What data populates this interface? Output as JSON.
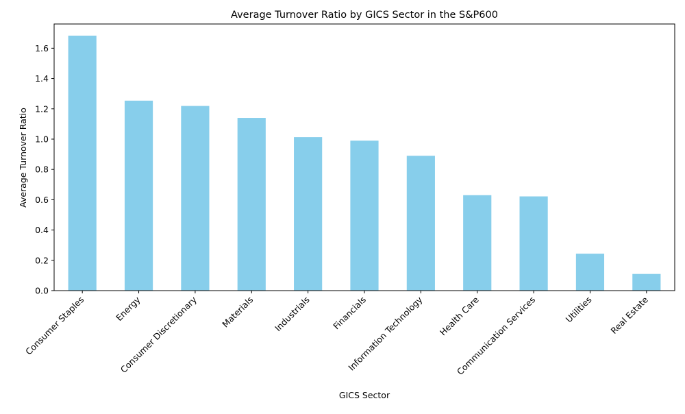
{
  "chart_data": {
    "type": "bar",
    "title": "Average Turnover Ratio by GICS Sector in the S&P600",
    "xlabel": "GICS Sector",
    "ylabel": "Average Turnover Ratio",
    "categories": [
      "Consumer Staples",
      "Energy",
      "Consumer Discretionary",
      "Materials",
      "Industrials",
      "Financials",
      "Information Technology",
      "Health Care",
      "Communication Services",
      "Utilities",
      "Real Estate"
    ],
    "values": [
      1.683,
      1.254,
      1.219,
      1.14,
      1.013,
      0.99,
      0.89,
      0.63,
      0.622,
      0.244,
      0.11
    ],
    "ylim": [
      0,
      1.76
    ],
    "yticks": [
      0.0,
      0.2,
      0.4,
      0.6,
      0.8,
      1.0,
      1.2,
      1.4,
      1.6
    ],
    "ytick_labels": [
      "0.0",
      "0.2",
      "0.4",
      "0.6",
      "0.8",
      "1.0",
      "1.2",
      "1.4",
      "1.6"
    ],
    "bar_color": "#87ceeb",
    "grid": false,
    "legend": "none"
  }
}
